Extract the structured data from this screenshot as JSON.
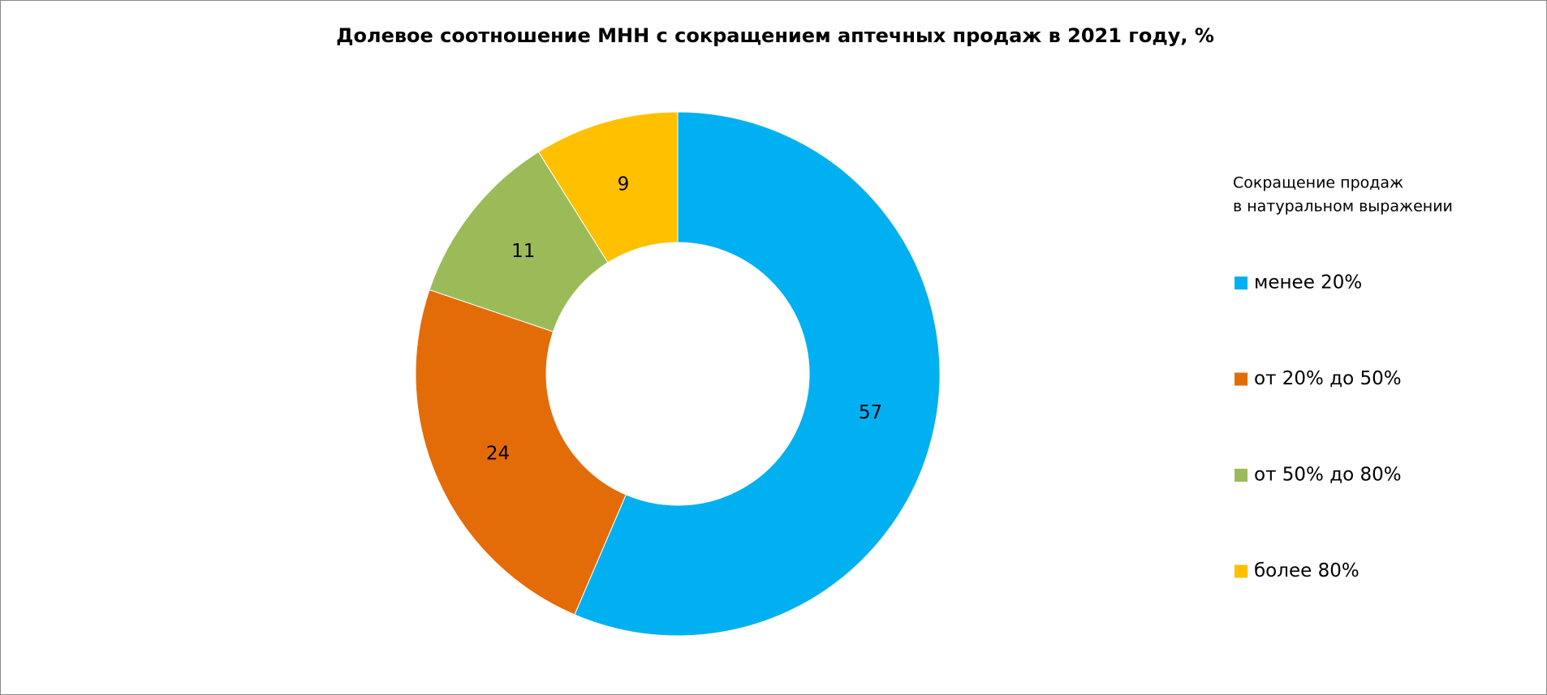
{
  "chart_data": {
    "type": "donut",
    "title": "Долевое соотношение МНН с сокращением аптечных продаж в 2021 году, %",
    "legend_title": [
      "Сокращение продаж",
      "в натуральном выражении"
    ],
    "categories": [
      "менее 20%",
      "от 20% до 50%",
      "от 50% до 80%",
      "более 80%"
    ],
    "values": [
      57,
      24,
      11,
      9
    ],
    "colors": [
      "#00b0f0",
      "#e36c09",
      "#9bbb59",
      "#ffc000"
    ],
    "legend": "right"
  }
}
